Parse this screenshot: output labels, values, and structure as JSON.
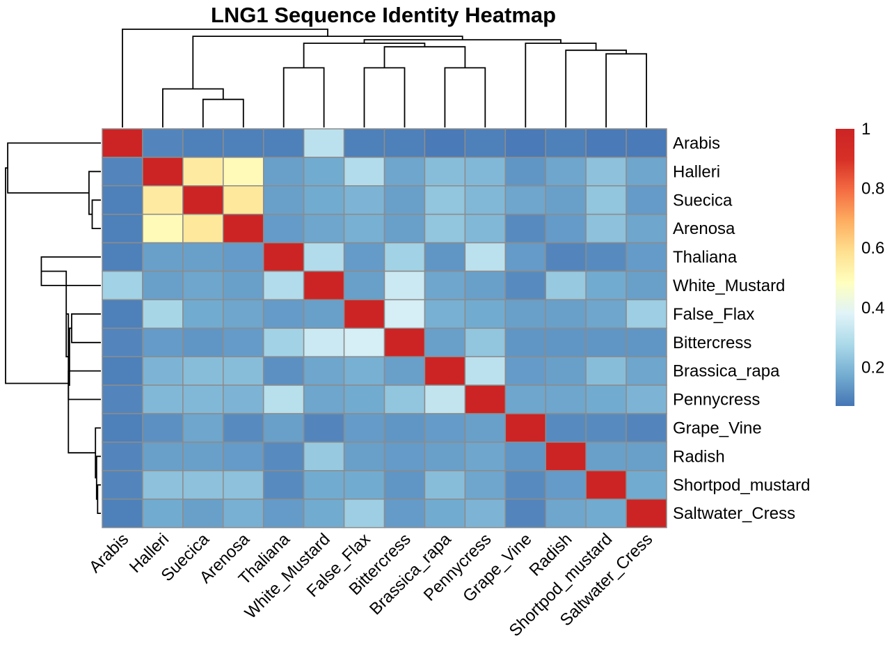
{
  "chart_data": {
    "type": "heatmap",
    "title": "LNG1 Sequence Identity Heatmap",
    "rows": [
      "Arabis",
      "Halleri",
      "Suecica",
      "Arenosa",
      "Thaliana",
      "White_Mustard",
      "False_Flax",
      "Bittercress",
      "Brassica_rapa",
      "Pennycress",
      "Grape_Vine",
      "Radish",
      "Shortpod_mustard",
      "Saltwater_Cress"
    ],
    "columns": [
      "Arabis",
      "Halleri",
      "Suecica",
      "Arenosa",
      "Thaliana",
      "White_Mustard",
      "False_Flax",
      "Bittercress",
      "Brassica_rapa",
      "Pennycress",
      "Grape_Vine",
      "Radish",
      "Shortpod_mustard",
      "Saltwater_Cress"
    ],
    "values": [
      [
        1.0,
        0.1,
        0.09,
        0.09,
        0.09,
        0.31,
        0.09,
        0.09,
        0.08,
        0.09,
        0.08,
        0.09,
        0.08,
        0.08
      ],
      [
        0.1,
        1.0,
        0.55,
        0.5,
        0.15,
        0.17,
        0.29,
        0.16,
        0.21,
        0.2,
        0.13,
        0.16,
        0.22,
        0.16
      ],
      [
        0.09,
        0.55,
        1.0,
        0.56,
        0.15,
        0.17,
        0.19,
        0.15,
        0.23,
        0.2,
        0.16,
        0.15,
        0.23,
        0.14
      ],
      [
        0.09,
        0.5,
        0.56,
        1.0,
        0.14,
        0.16,
        0.18,
        0.15,
        0.23,
        0.2,
        0.11,
        0.14,
        0.22,
        0.16
      ],
      [
        0.09,
        0.15,
        0.15,
        0.14,
        1.0,
        0.29,
        0.14,
        0.26,
        0.13,
        0.31,
        0.14,
        0.1,
        0.11,
        0.14
      ],
      [
        0.26,
        0.15,
        0.16,
        0.15,
        0.29,
        1.0,
        0.15,
        0.34,
        0.16,
        0.15,
        0.11,
        0.24,
        0.17,
        0.15
      ],
      [
        0.09,
        0.27,
        0.17,
        0.16,
        0.14,
        0.15,
        1.0,
        0.36,
        0.18,
        0.17,
        0.15,
        0.15,
        0.16,
        0.25
      ],
      [
        0.1,
        0.14,
        0.13,
        0.14,
        0.26,
        0.34,
        0.36,
        1.0,
        0.15,
        0.23,
        0.13,
        0.13,
        0.13,
        0.13
      ],
      [
        0.09,
        0.19,
        0.21,
        0.21,
        0.12,
        0.16,
        0.18,
        0.15,
        1.0,
        0.31,
        0.14,
        0.15,
        0.21,
        0.16
      ],
      [
        0.1,
        0.2,
        0.2,
        0.19,
        0.3,
        0.16,
        0.17,
        0.23,
        0.32,
        1.0,
        0.16,
        0.16,
        0.17,
        0.19
      ],
      [
        0.09,
        0.12,
        0.16,
        0.11,
        0.15,
        0.1,
        0.14,
        0.13,
        0.14,
        0.15,
        1.0,
        0.11,
        0.11,
        0.1
      ],
      [
        0.1,
        0.15,
        0.15,
        0.14,
        0.11,
        0.24,
        0.15,
        0.14,
        0.15,
        0.16,
        0.13,
        1.0,
        0.15,
        0.15
      ],
      [
        0.1,
        0.22,
        0.22,
        0.22,
        0.11,
        0.17,
        0.17,
        0.13,
        0.21,
        0.16,
        0.11,
        0.14,
        1.0,
        0.17
      ],
      [
        0.09,
        0.17,
        0.15,
        0.18,
        0.14,
        0.17,
        0.25,
        0.14,
        0.17,
        0.19,
        0.1,
        0.16,
        0.17,
        1.0
      ]
    ],
    "color_scale": {
      "colors": [
        "#4575b4",
        "#74add1",
        "#abd9e9",
        "#e0f3f8",
        "#ffffbf",
        "#fee090",
        "#fdae61",
        "#f46d43",
        "#d73027",
        "#cc2424"
      ],
      "range": [
        0.07,
        1.0
      ],
      "ticks": [
        0.2,
        0.4,
        0.6,
        0.8,
        1
      ]
    },
    "row_dendrogram": [
      {
        "a": 2,
        "b": 3,
        "h": 0.08
      },
      {
        "a": 1,
        "b": "m0",
        "h": 0.11
      },
      {
        "a": 0,
        "b": "m1",
        "h": 0.86
      },
      {
        "a": 4,
        "b": 5,
        "h": 0.55
      },
      {
        "a": 6,
        "b": 7,
        "h": 0.27
      },
      {
        "a": 8,
        "b": 9,
        "h": 0.3
      },
      {
        "a": "m4",
        "b": "m5",
        "h": 0.29
      },
      {
        "a": "m3",
        "b": "m6",
        "h": 0.32
      },
      {
        "a": 12,
        "b": 13,
        "h": 0.03
      },
      {
        "a": 11,
        "b": "m8",
        "h": 0.04
      },
      {
        "a": 10,
        "b": "m9",
        "h": 0.05
      },
      {
        "a": "m7",
        "b": "m10",
        "h": 0.3
      },
      {
        "a": "m2",
        "b": "m11",
        "h": 0.88
      }
    ],
    "col_dendrogram": [
      {
        "a": 2,
        "b": 3,
        "h": 0.08
      },
      {
        "a": 1,
        "b": "m0",
        "h": 0.11
      },
      {
        "a": 4,
        "b": 5,
        "h": 0.17
      },
      {
        "a": 6,
        "b": 7,
        "h": 0.17
      },
      {
        "a": 8,
        "b": 9,
        "h": 0.17
      },
      {
        "a": "m3",
        "b": "m4",
        "h": 0.23
      },
      {
        "a": "m2",
        "b": "m5",
        "h": 0.24
      },
      {
        "a": 12,
        "b": 13,
        "h": 0.21
      },
      {
        "a": 11,
        "b": "m7",
        "h": 0.22
      },
      {
        "a": 10,
        "b": "m8",
        "h": 0.24
      },
      {
        "a": "m6",
        "b": "m9",
        "h": 0.25
      },
      {
        "a": "m1",
        "b": "m10",
        "h": 0.26
      },
      {
        "a": 0,
        "b": "m11",
        "h": 0.28
      }
    ]
  }
}
